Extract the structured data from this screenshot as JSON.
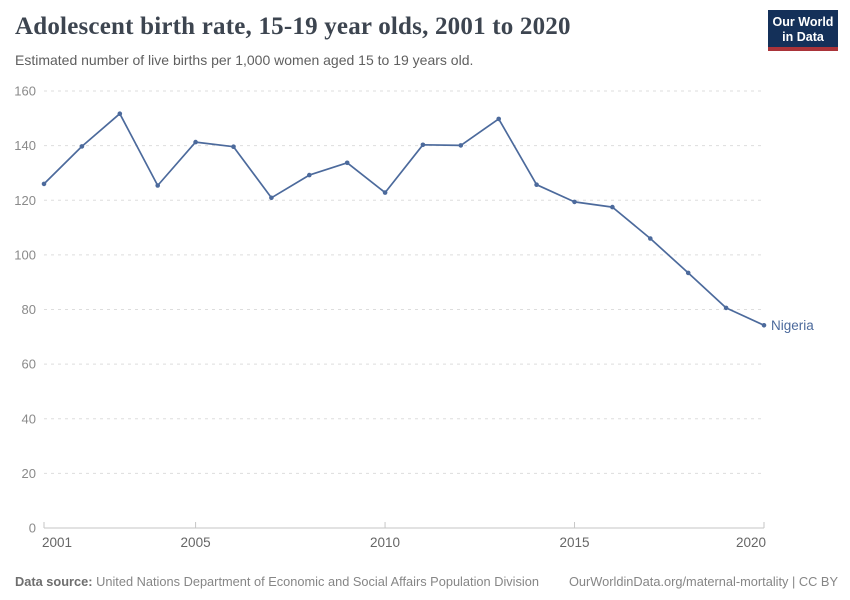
{
  "header": {
    "title": "Adolescent birth rate, 15-19 year olds, 2001 to 2020",
    "subtitle": "Estimated number of live births per 1,000 women aged 15 to 19 years old."
  },
  "logo": {
    "line1": "Our World",
    "line2": "in Data",
    "bg_color": "#143059",
    "bar_color": "#aa3339"
  },
  "chart_data": {
    "type": "line",
    "title": "Adolescent birth rate, 15-19 year olds, 2001 to 2020",
    "ylabel": "",
    "xlabel": "",
    "xlim": [
      2001,
      2020
    ],
    "ylim": [
      0,
      160
    ],
    "yticks": [
      0,
      20,
      40,
      60,
      80,
      100,
      120,
      140,
      160
    ],
    "xticks": [
      2001,
      2005,
      2010,
      2015,
      2020
    ],
    "grid": "horizontal-dashed",
    "grid_color": "#dddddd",
    "axis_color": "#c6c6c6",
    "ytick_color": "#8a8a8a",
    "xtick_color": "#666666",
    "legend_position": "end-of-line-label",
    "series": [
      {
        "name": "Nigeria",
        "color": "#4c6a9c",
        "x": [
          2001,
          2002,
          2003,
          2004,
          2005,
          2006,
          2007,
          2008,
          2009,
          2010,
          2011,
          2012,
          2013,
          2014,
          2015,
          2016,
          2017,
          2018,
          2019,
          2020
        ],
        "values": [
          126.0,
          139.7,
          151.7,
          125.4,
          141.3,
          139.6,
          120.9,
          129.2,
          133.7,
          122.8,
          140.3,
          140.1,
          149.8,
          125.7,
          119.4,
          117.5,
          106.0,
          93.4,
          80.6,
          74.2
        ]
      }
    ]
  },
  "footer": {
    "datasource_label": "Data source:",
    "datasource_text": "United Nations Department of Economic and Social Affairs Population Division",
    "attribution": "OurWorldinData.org/maternal-mortality | CC BY"
  }
}
